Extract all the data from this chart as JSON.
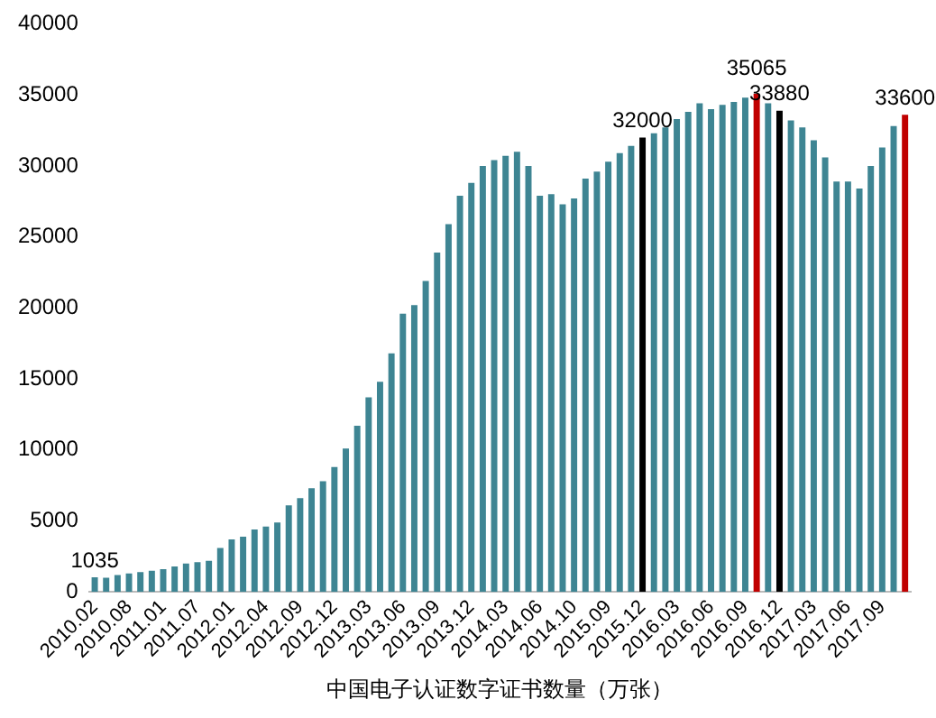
{
  "chart_data": {
    "type": "bar",
    "xlabel": "中国电子认证数字证书数量（万张）",
    "categories": [
      "2010.02",
      null,
      null,
      "2010.08",
      null,
      null,
      "2011.01",
      null,
      null,
      "2011.07",
      null,
      null,
      "2012.01",
      null,
      null,
      "2012.04",
      null,
      null,
      "2012.09",
      null,
      null,
      "2012.12",
      null,
      null,
      "2013.03",
      null,
      null,
      "2013.06",
      null,
      null,
      "2013.09",
      null,
      null,
      "2013.12",
      null,
      null,
      "2014.03",
      null,
      null,
      "2014.06",
      null,
      null,
      "2014.10",
      null,
      null,
      "2015.09",
      null,
      null,
      "2015.12",
      null,
      null,
      "2016.03",
      null,
      null,
      "2016.06",
      null,
      null,
      "2016.09",
      null,
      null,
      "2016.12",
      null,
      null,
      "2017.03",
      null,
      null,
      "2017.06",
      null,
      null,
      "2017.09",
      null,
      null
    ],
    "values": [
      1035,
      1000,
      1200,
      1300,
      1400,
      1500,
      1600,
      1800,
      2000,
      2100,
      2200,
      3100,
      3700,
      3900,
      4400,
      4600,
      4900,
      6100,
      6600,
      7300,
      7800,
      8800,
      10100,
      11700,
      13700,
      14800,
      16800,
      19600,
      20200,
      21900,
      23900,
      25900,
      27900,
      28800,
      30000,
      30400,
      30700,
      31000,
      30000,
      27900,
      28000,
      27300,
      27700,
      29100,
      29600,
      30300,
      30900,
      31400,
      32000,
      32300,
      32700,
      33300,
      33800,
      34400,
      34000,
      34300,
      34500,
      34800,
      35065,
      34400,
      33880,
      33200,
      32700,
      31800,
      30600,
      28900,
      28900,
      28400,
      30000,
      31300,
      32800,
      33600
    ],
    "colors": [
      "#3e8593",
      "#3e8593",
      "#3e8593",
      "#3e8593",
      "#3e8593",
      "#3e8593",
      "#3e8593",
      "#3e8593",
      "#3e8593",
      "#3e8593",
      "#3e8593",
      "#3e8593",
      "#3e8593",
      "#3e8593",
      "#3e8593",
      "#3e8593",
      "#3e8593",
      "#3e8593",
      "#3e8593",
      "#3e8593",
      "#3e8593",
      "#3e8593",
      "#3e8593",
      "#3e8593",
      "#3e8593",
      "#3e8593",
      "#3e8593",
      "#3e8593",
      "#3e8593",
      "#3e8593",
      "#3e8593",
      "#3e8593",
      "#3e8593",
      "#3e8593",
      "#3e8593",
      "#3e8593",
      "#3e8593",
      "#3e8593",
      "#3e8593",
      "#3e8593",
      "#3e8593",
      "#3e8593",
      "#3e8593",
      "#3e8593",
      "#3e8593",
      "#3e8593",
      "#3e8593",
      "#3e8593",
      "#000000",
      "#3e8593",
      "#3e8593",
      "#3e8593",
      "#3e8593",
      "#3e8593",
      "#3e8593",
      "#3e8593",
      "#3e8593",
      "#3e8593",
      "#c00000",
      "#3e8593",
      "#000000",
      "#3e8593",
      "#3e8593",
      "#3e8593",
      "#3e8593",
      "#3e8593",
      "#3e8593",
      "#3e8593",
      "#3e8593",
      "#3e8593",
      "#3e8593",
      "#c00000"
    ],
    "value_labels": [
      "1035",
      null,
      null,
      null,
      null,
      null,
      null,
      null,
      null,
      null,
      null,
      null,
      null,
      null,
      null,
      null,
      null,
      null,
      null,
      null,
      null,
      null,
      null,
      null,
      null,
      null,
      null,
      null,
      null,
      null,
      null,
      null,
      null,
      null,
      null,
      null,
      null,
      null,
      null,
      null,
      null,
      null,
      null,
      null,
      null,
      null,
      null,
      null,
      "32000",
      null,
      null,
      null,
      null,
      null,
      null,
      null,
      null,
      null,
      "35065",
      null,
      "33880",
      null,
      null,
      null,
      null,
      null,
      null,
      null,
      null,
      null,
      null,
      "33600"
    ],
    "ylim": [
      0,
      40000
    ],
    "yticks": [
      0,
      5000,
      10000,
      15000,
      20000,
      25000,
      30000,
      35000,
      40000
    ],
    "grid": false,
    "legend": false
  }
}
